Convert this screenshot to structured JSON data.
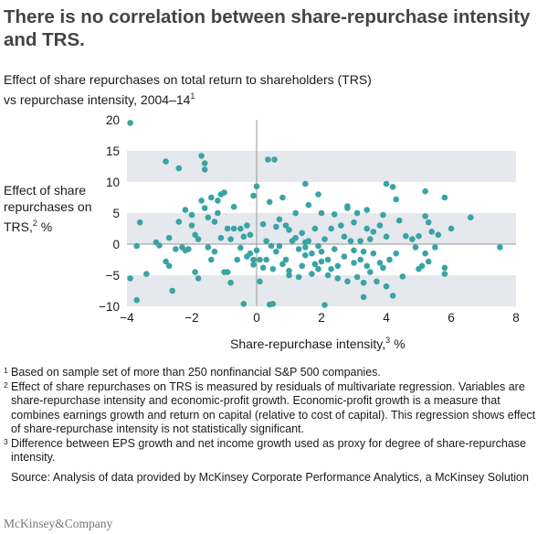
{
  "header": {
    "title": "There is no correlation between share-repurchase intensity and TRS.",
    "subtitle_line1": "Effect of share repurchases on total return to shareholders (TRS)",
    "subtitle_line2": "vs repurchase intensity, 2004–14",
    "subtitle_mark": "1"
  },
  "axis_labels": {
    "y_text": "Effect of share repurchases on TRS,",
    "y_mark": "2",
    "y_unit": "%",
    "x_text": "Share-repurchase intensity,",
    "x_mark": "3",
    "x_unit": "%"
  },
  "footnotes": [
    {
      "mark": "1",
      "text": "Based on sample set of more than 250 nonfinancial S&P 500 companies."
    },
    {
      "mark": "2",
      "text": "Effect of share repurchases on TRS is measured by residuals of multivariate regression. Variables are share-repurchase intensity and economic-profit growth. Economic-profit growth is a measure that combines earnings growth and return on capital (relative to cost of capital). This regression shows effect of share-repurchase intensity is not statistically significant."
    },
    {
      "mark": "3",
      "text": "Difference between EPS growth and net income growth used as proxy for degree of share-repurchase intensity."
    }
  ],
  "source": "Source: Analysis of provided by McKinsey Corporate Performance Analytics, a McKinsey Solution",
  "source_exact": "Source: Analysis of data provided by McKinsey Corporate Performance Analytics, a McKinsey Solution",
  "logo": "McKinsey&Company",
  "colors": {
    "point": "#3aa3a5",
    "band": "#e5e8ec",
    "axis_line": "#999999",
    "title": "#444444"
  },
  "chart_data": {
    "type": "scatter",
    "xlim": [
      -4,
      8
    ],
    "ylim": [
      -10,
      20
    ],
    "xticks": [
      -4,
      -2,
      0,
      2,
      4,
      6,
      8
    ],
    "yticks": [
      20,
      15,
      10,
      5,
      0,
      -5,
      -10
    ],
    "xtick_labels": [
      "−4",
      "−2",
      "0",
      "2",
      "4",
      "6",
      "8"
    ],
    "ytick_labels": [
      "20",
      "15",
      "10",
      "5",
      "0",
      "−5",
      "−10"
    ],
    "grid": "alternating horizontal bands",
    "points": [
      [
        -3.9,
        19.5
      ],
      [
        -3.9,
        -5.5
      ],
      [
        -3.7,
        -9.0
      ],
      [
        -3.7,
        -0.3
      ],
      [
        -3.6,
        3.5
      ],
      [
        -3.4,
        -4.8
      ],
      [
        -3.1,
        0.3
      ],
      [
        -3.0,
        -0.2
      ],
      [
        -2.8,
        13.3
      ],
      [
        -2.8,
        -2.8
      ],
      [
        -2.7,
        -3.5
      ],
      [
        -2.7,
        1.0
      ],
      [
        -2.6,
        -7.5
      ],
      [
        -2.5,
        -0.8
      ],
      [
        -2.4,
        12.2
      ],
      [
        -2.4,
        3.6
      ],
      [
        -2.3,
        -0.5
      ],
      [
        -2.2,
        -1.0
      ],
      [
        -2.2,
        5.5
      ],
      [
        -2.1,
        -0.8
      ],
      [
        -2.0,
        4.7
      ],
      [
        -2.0,
        3.0
      ],
      [
        -1.9,
        1.5
      ],
      [
        -1.9,
        -4.5
      ],
      [
        -1.8,
        0.8
      ],
      [
        -1.8,
        -5.5
      ],
      [
        -1.7,
        14.2
      ],
      [
        -1.7,
        7.0
      ],
      [
        -1.6,
        13.0
      ],
      [
        -1.6,
        12.0
      ],
      [
        -1.6,
        5.8
      ],
      [
        -1.5,
        4.3
      ],
      [
        -1.5,
        -0.5
      ],
      [
        -1.4,
        7.5
      ],
      [
        -1.4,
        -2.5
      ],
      [
        -1.3,
        3.6
      ],
      [
        -1.3,
        -1.2
      ],
      [
        -1.2,
        5.0
      ],
      [
        -1.2,
        7.0
      ],
      [
        -1.1,
        8.0
      ],
      [
        -1.1,
        1.0
      ],
      [
        -1.0,
        8.3
      ],
      [
        -1.0,
        -4.5
      ],
      [
        -0.9,
        2.5
      ],
      [
        -0.9,
        -4.5
      ],
      [
        -0.8,
        0.8
      ],
      [
        -0.8,
        -6.2
      ],
      [
        -0.7,
        6.0
      ],
      [
        -0.7,
        2.5
      ],
      [
        -0.6,
        -2.5
      ],
      [
        -0.5,
        -0.6
      ],
      [
        -0.5,
        2.5
      ],
      [
        -0.4,
        1.2
      ],
      [
        -0.4,
        -9.6
      ],
      [
        -0.3,
        -2.0
      ],
      [
        -0.3,
        3.0
      ],
      [
        -0.2,
        -1.5
      ],
      [
        -0.2,
        1.5
      ],
      [
        -0.1,
        -3.3
      ],
      [
        -0.1,
        -2.5
      ],
      [
        -0.1,
        7.8
      ],
      [
        0.0,
        9.3
      ],
      [
        0.0,
        -1.0
      ],
      [
        0.1,
        -2.5
      ],
      [
        0.1,
        -6.0
      ],
      [
        0.2,
        -3.8
      ],
      [
        0.2,
        3.2
      ],
      [
        0.3,
        0.5
      ],
      [
        0.3,
        -2.5
      ],
      [
        0.35,
        13.6
      ],
      [
        0.4,
        -9.7
      ],
      [
        0.4,
        6.8
      ],
      [
        0.45,
        -0.3
      ],
      [
        0.5,
        -4.0
      ],
      [
        0.5,
        -9.6
      ],
      [
        0.55,
        13.6
      ],
      [
        0.6,
        2.8
      ],
      [
        0.6,
        -1.2
      ],
      [
        0.7,
        4.0
      ],
      [
        0.7,
        -0.3
      ],
      [
        0.8,
        7.5
      ],
      [
        0.8,
        -3.2
      ],
      [
        0.9,
        3.0
      ],
      [
        0.9,
        -2.5
      ],
      [
        1.0,
        2.3
      ],
      [
        1.0,
        -4.3
      ],
      [
        1.0,
        -5.0
      ],
      [
        1.1,
        0.5
      ],
      [
        1.2,
        1.0
      ],
      [
        1.2,
        5.0
      ],
      [
        1.3,
        -5.3
      ],
      [
        1.3,
        -0.8
      ],
      [
        1.4,
        1.8
      ],
      [
        1.4,
        -3.5
      ],
      [
        1.5,
        0.3
      ],
      [
        1.5,
        9.7
      ],
      [
        1.5,
        -1.8
      ],
      [
        1.5,
        -0.5
      ],
      [
        1.6,
        0.5
      ],
      [
        1.6,
        6.3
      ],
      [
        1.7,
        -1.5
      ],
      [
        1.7,
        -4.8
      ],
      [
        1.8,
        2.5
      ],
      [
        1.8,
        -3.2
      ],
      [
        1.9,
        8.0
      ],
      [
        1.9,
        -0.3
      ],
      [
        1.9,
        -4.0
      ],
      [
        2.0,
        5.0
      ],
      [
        2.0,
        -1.2
      ],
      [
        2.0,
        -2.8
      ],
      [
        2.1,
        -9.8
      ],
      [
        2.1,
        0.8
      ],
      [
        2.2,
        -2.5
      ],
      [
        2.2,
        -5.0
      ],
      [
        2.3,
        2.5
      ],
      [
        2.3,
        -4.0
      ],
      [
        2.4,
        4.8
      ],
      [
        2.4,
        -0.8
      ],
      [
        2.5,
        -3.5
      ],
      [
        2.5,
        -5.5
      ],
      [
        2.6,
        3.0
      ],
      [
        2.7,
        1.2
      ],
      [
        2.7,
        -2.0
      ],
      [
        2.8,
        -6.0
      ],
      [
        2.8,
        5.8
      ],
      [
        2.8,
        6.1
      ],
      [
        2.9,
        0.5
      ],
      [
        3.0,
        -3.0
      ],
      [
        3.0,
        3.5
      ],
      [
        3.0,
        -1.0
      ],
      [
        3.1,
        5.0
      ],
      [
        3.1,
        -5.3
      ],
      [
        3.2,
        -2.5
      ],
      [
        3.2,
        0.5
      ],
      [
        3.3,
        -6.2
      ],
      [
        3.3,
        -8.5
      ],
      [
        3.3,
        -1.2
      ],
      [
        3.4,
        2.5
      ],
      [
        3.4,
        5.5
      ],
      [
        3.4,
        -3.5
      ],
      [
        3.5,
        0.8
      ],
      [
        3.5,
        -4.5
      ],
      [
        3.6,
        -1.5
      ],
      [
        3.6,
        2.0
      ],
      [
        3.7,
        -6.0
      ],
      [
        3.8,
        3.0
      ],
      [
        3.8,
        -3.0
      ],
      [
        3.9,
        4.7
      ],
      [
        3.9,
        -3.8
      ],
      [
        4.0,
        1.2
      ],
      [
        4.0,
        9.7
      ],
      [
        4.0,
        -6.8
      ],
      [
        4.1,
        -2.5
      ],
      [
        4.2,
        9.2
      ],
      [
        4.2,
        -8.3
      ],
      [
        4.3,
        -1.5
      ],
      [
        4.3,
        7.2
      ],
      [
        4.4,
        3.8
      ],
      [
        4.5,
        -5.2
      ],
      [
        4.6,
        1.3
      ],
      [
        4.8,
        0.8
      ],
      [
        4.9,
        -0.5
      ],
      [
        5.0,
        -4.0
      ],
      [
        5.0,
        1.3
      ],
      [
        5.1,
        -3.5
      ],
      [
        5.2,
        4.5
      ],
      [
        5.2,
        -1.5
      ],
      [
        5.2,
        8.5
      ],
      [
        5.3,
        -2.8
      ],
      [
        5.3,
        3.5
      ],
      [
        5.4,
        2.0
      ],
      [
        5.5,
        -0.5
      ],
      [
        5.6,
        1.5
      ],
      [
        5.8,
        -3.8
      ],
      [
        5.8,
        -4.8
      ],
      [
        5.8,
        7.5
      ],
      [
        6.0,
        2.5
      ],
      [
        6.6,
        4.3
      ],
      [
        7.5,
        -0.5
      ]
    ]
  }
}
